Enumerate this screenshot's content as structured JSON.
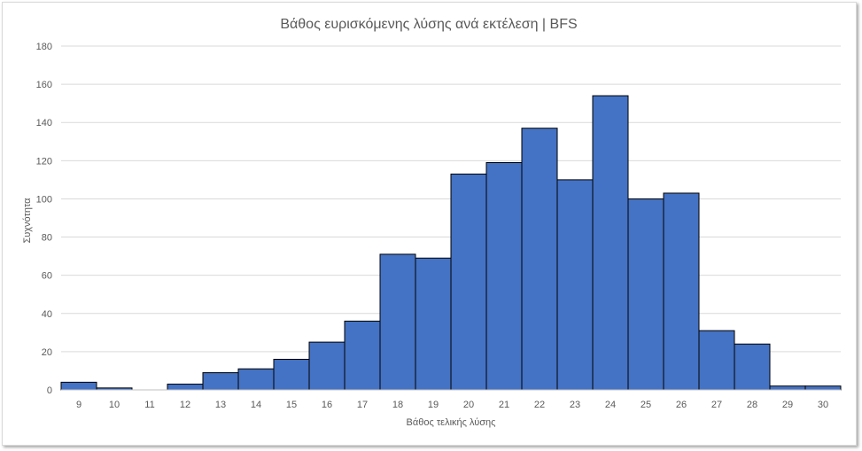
{
  "chart_data": {
    "type": "bar",
    "title": "Βάθος ευρισκόμενης λύσης ανά εκτέλεση | BFS",
    "xlabel": "Βάθος τελικής λύσης",
    "ylabel": "Συχνότητα",
    "categories": [
      "9",
      "10",
      "11",
      "12",
      "13",
      "14",
      "15",
      "16",
      "17",
      "18",
      "19",
      "20",
      "21",
      "22",
      "23",
      "24",
      "25",
      "26",
      "27",
      "28",
      "29",
      "30"
    ],
    "values": [
      4,
      1,
      0,
      3,
      9,
      11,
      16,
      25,
      36,
      71,
      69,
      113,
      119,
      137,
      110,
      154,
      100,
      103,
      31,
      24,
      2,
      2
    ],
    "ylim": [
      0,
      180
    ],
    "yticks": [
      0,
      20,
      40,
      60,
      80,
      100,
      120,
      140,
      160,
      180
    ],
    "grid": true,
    "legend": "none",
    "bar_color": "#4472c4"
  }
}
